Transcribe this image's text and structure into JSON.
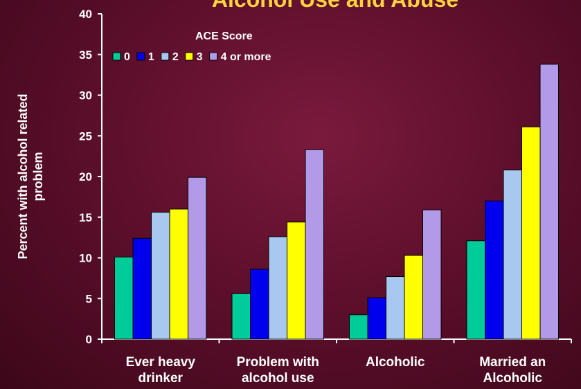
{
  "chart_data": {
    "type": "bar",
    "title": "Alcohol Use and Abuse",
    "ylabel": "Percent with alcohol related problem",
    "ylim": [
      0,
      40
    ],
    "yticks": [
      0,
      5,
      10,
      15,
      20,
      25,
      30,
      35,
      40
    ],
    "categories": [
      "Ever heavy drinker",
      "Problem with alcohol use",
      "Alcoholic",
      "Married an Alcoholic"
    ],
    "legend_title": "ACE Score",
    "legend_position": "top-left",
    "series": [
      {
        "name": "0",
        "color": "#00cc99",
        "values": [
          10.1,
          5.6,
          3.0,
          12.1
        ]
      },
      {
        "name": "1",
        "color": "#0000ee",
        "values": [
          12.4,
          8.6,
          5.1,
          17.0
        ]
      },
      {
        "name": "2",
        "color": "#a8c8f0",
        "values": [
          15.6,
          12.6,
          7.7,
          20.8
        ]
      },
      {
        "name": "3",
        "color": "#ffff00",
        "values": [
          16.0,
          14.4,
          10.3,
          26.1
        ]
      },
      {
        "name": "4 or more",
        "color": "#b39ae8",
        "values": [
          19.9,
          23.3,
          15.9,
          33.8
        ]
      }
    ]
  }
}
